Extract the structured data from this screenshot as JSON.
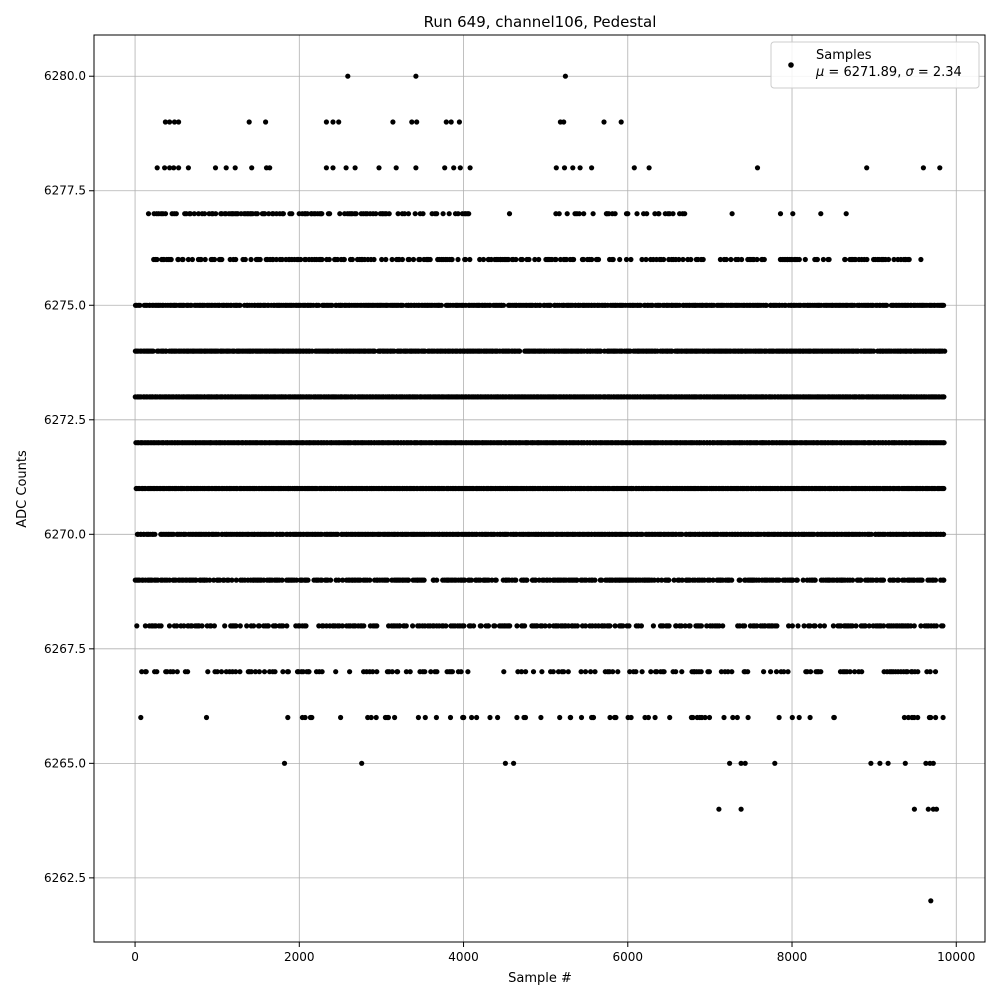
{
  "chart_data": {
    "type": "scatter",
    "title": "Run 649, channel106, Pedestal",
    "xlabel": "Sample #",
    "ylabel": "ADC Counts",
    "xlim": [
      -500,
      10350
    ],
    "ylim": [
      6261.1,
      6280.9
    ],
    "x_ticks": [
      0,
      2000,
      4000,
      6000,
      8000,
      10000
    ],
    "x_tick_labels": [
      "0",
      "2000",
      "4000",
      "6000",
      "8000",
      "10000"
    ],
    "y_ticks": [
      6262.5,
      6265.0,
      6267.5,
      6270.0,
      6272.5,
      6275.0,
      6277.5,
      6280.0
    ],
    "y_tick_labels": [
      "6262.5",
      "6265.0",
      "6267.5",
      "6270.0",
      "6272.5",
      "6275.0",
      "6277.5",
      "6280.0"
    ],
    "grid": true,
    "legend": {
      "position": "top-right",
      "label": "Samples",
      "stats_prefix_mu": "μ",
      "stats_mid": " = 6271.89, ",
      "stats_prefix_sigma": "σ",
      "stats_suffix": " = 2.34"
    },
    "marker_color": "#000000",
    "series": [
      {
        "name": "Samples",
        "points": [
          [
            2590,
            6280
          ],
          [
            3420,
            6280
          ],
          [
            5240,
            6280
          ],
          [
            370,
            6279
          ],
          [
            420,
            6279
          ],
          [
            480,
            6279
          ],
          [
            530,
            6279
          ],
          [
            1390,
            6279
          ],
          [
            1590,
            6279
          ],
          [
            2330,
            6279
          ],
          [
            2410,
            6279
          ],
          [
            2480,
            6279
          ],
          [
            3140,
            6279
          ],
          [
            3370,
            6279
          ],
          [
            3430,
            6279
          ],
          [
            3790,
            6279
          ],
          [
            3850,
            6279
          ],
          [
            3950,
            6279
          ],
          [
            5180,
            6279
          ],
          [
            5220,
            6279
          ],
          [
            5710,
            6279
          ],
          [
            5920,
            6279
          ],
          [
            270,
            6278
          ],
          [
            360,
            6278
          ],
          [
            420,
            6278
          ],
          [
            470,
            6278
          ],
          [
            530,
            6278
          ],
          [
            650,
            6278
          ],
          [
            980,
            6278
          ],
          [
            1110,
            6278
          ],
          [
            1220,
            6278
          ],
          [
            1420,
            6278
          ],
          [
            1600,
            6278
          ],
          [
            1640,
            6278
          ],
          [
            2330,
            6278
          ],
          [
            2410,
            6278
          ],
          [
            2570,
            6278
          ],
          [
            2680,
            6278
          ],
          [
            2970,
            6278
          ],
          [
            3180,
            6278
          ],
          [
            3420,
            6278
          ],
          [
            3770,
            6278
          ],
          [
            3880,
            6278
          ],
          [
            3960,
            6278
          ],
          [
            4080,
            6278
          ],
          [
            5130,
            6278
          ],
          [
            5230,
            6278
          ],
          [
            5330,
            6278
          ],
          [
            5420,
            6278
          ],
          [
            5560,
            6278
          ],
          [
            6080,
            6278
          ],
          [
            6260,
            6278
          ],
          [
            7580,
            6278
          ],
          [
            8910,
            6278
          ],
          [
            9600,
            6278
          ],
          [
            9800,
            6278
          ],
          [
            4560,
            6277
          ],
          [
            7270,
            6277
          ],
          [
            7860,
            6277
          ],
          [
            8010,
            6277
          ],
          [
            8350,
            6277
          ],
          [
            8660,
            6277
          ],
          [
            6500,
            6276
          ],
          [
            8880,
            6276
          ],
          [
            9100,
            6276
          ],
          [
            9570,
            6276
          ],
          [
            5300,
            6266
          ],
          [
            5560,
            6266
          ],
          [
            5840,
            6266
          ],
          [
            6040,
            6266
          ],
          [
            6210,
            6266
          ],
          [
            6510,
            6266
          ],
          [
            3450,
            6266
          ],
          [
            3670,
            6266
          ],
          [
            870,
            6266
          ],
          [
            70,
            6266
          ],
          [
            1820,
            6265
          ],
          [
            2760,
            6265
          ],
          [
            4510,
            6265
          ],
          [
            4610,
            6265
          ],
          [
            7240,
            6265
          ],
          [
            7380,
            6265
          ],
          [
            7430,
            6265
          ],
          [
            7790,
            6265
          ],
          [
            8960,
            6265
          ],
          [
            9070,
            6265
          ],
          [
            9170,
            6265
          ],
          [
            9380,
            6265
          ],
          [
            9630,
            6265
          ],
          [
            9680,
            6265
          ],
          [
            9720,
            6265
          ],
          [
            7110,
            6264
          ],
          [
            7380,
            6264
          ],
          [
            9490,
            6264
          ],
          [
            9660,
            6264
          ],
          [
            9720,
            6264
          ],
          [
            9760,
            6264
          ],
          [
            9690,
            6262
          ]
        ],
        "dense_bands": [
          {
            "y": 6277,
            "from": 150,
            "to": 4100,
            "density": 0.5
          },
          {
            "y": 6277,
            "from": 5100,
            "to": 6700,
            "density": 0.35
          },
          {
            "y": 6276,
            "from": 150,
            "to": 9450,
            "density": 0.45
          },
          {
            "y": 6275,
            "from": 0,
            "to": 9850,
            "density": 0.9
          },
          {
            "y": 6274,
            "from": 0,
            "to": 9850,
            "density": 0.95
          },
          {
            "y": 6273,
            "from": 0,
            "to": 9850,
            "density": 1.0
          },
          {
            "y": 6272,
            "from": 0,
            "to": 9850,
            "density": 1.0
          },
          {
            "y": 6271,
            "from": 0,
            "to": 9850,
            "density": 1.0
          },
          {
            "y": 6270,
            "from": 0,
            "to": 9850,
            "density": 0.95
          },
          {
            "y": 6269,
            "from": 0,
            "to": 9850,
            "density": 0.7
          },
          {
            "y": 6268,
            "from": 0,
            "to": 9850,
            "density": 0.5
          },
          {
            "y": 6267,
            "from": 80,
            "to": 9850,
            "density": 0.25
          },
          {
            "y": 6266,
            "from": 1800,
            "to": 9850,
            "density": 0.15
          }
        ]
      }
    ]
  }
}
